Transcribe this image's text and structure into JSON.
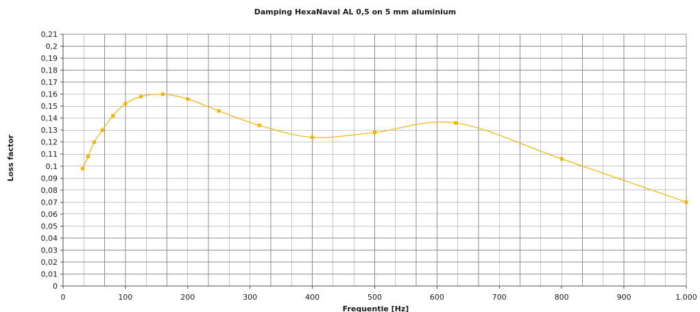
{
  "chart_data": {
    "type": "line",
    "title": "Damping HexaNaval AL 0,5 on 5 mm aluminium",
    "xlabel": "Frequentie [Hz]",
    "ylabel": "Loss factor",
    "xlim": [
      0,
      1000
    ],
    "ylim": [
      0,
      0.21
    ],
    "x_ticks": [
      0,
      100,
      200,
      300,
      400,
      500,
      600,
      700,
      800,
      900,
      1000
    ],
    "x_tick_labels": [
      "0",
      "100",
      "200",
      "300",
      "400",
      "500",
      "600",
      "700",
      "800",
      "900",
      "1.000"
    ],
    "x_minor_step": 33.333,
    "y_ticks": [
      0,
      0.01,
      0.02,
      0.03,
      0.04,
      0.05,
      0.06,
      0.07,
      0.08,
      0.09,
      0.1,
      0.11,
      0.12,
      0.13,
      0.14,
      0.15,
      0.16,
      0.17,
      0.18,
      0.19,
      0.2,
      0.21
    ],
    "y_tick_labels": [
      "0",
      "0,01",
      "0,02",
      "0,03",
      "0,04",
      "0,05",
      "0,06",
      "0,07",
      "0,08",
      "0,09",
      "0,1",
      "0,11",
      "0,12",
      "0,13",
      "0,14",
      "0,15",
      "0,16",
      "0,17",
      "0,18",
      "0,19",
      "0,2",
      "0,21"
    ],
    "grid": true,
    "legend": "none",
    "series": [
      {
        "color": "#f4b400",
        "marker": "square",
        "smooth": true,
        "x": [
          31.5,
          40,
          50,
          63,
          80,
          100,
          125,
          160,
          200,
          250,
          315,
          400,
          500,
          630,
          800,
          1000
        ],
        "y": [
          0.098,
          0.108,
          0.12,
          0.13,
          0.142,
          0.152,
          0.158,
          0.16,
          0.156,
          0.146,
          0.134,
          0.124,
          0.128,
          0.136,
          0.106,
          0.07
        ]
      }
    ]
  }
}
